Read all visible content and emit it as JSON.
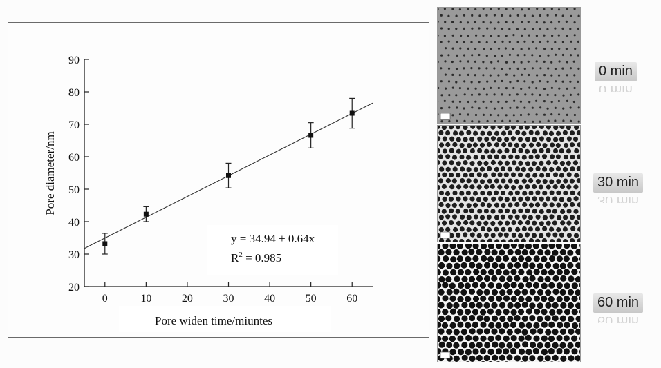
{
  "chart_data": {
    "type": "scatter",
    "xlabel": "Pore widen time/miuntes",
    "ylabel": "Pore diameter/nm",
    "xlim": [
      -5,
      65
    ],
    "ylim": [
      20,
      90
    ],
    "xticks": [
      0,
      10,
      20,
      30,
      40,
      50,
      60
    ],
    "yticks": [
      20,
      30,
      40,
      50,
      60,
      70,
      80,
      90
    ],
    "points": [
      {
        "x": 0,
        "y": 33.2,
        "err": 3.2
      },
      {
        "x": 10,
        "y": 42.3,
        "err": 2.3
      },
      {
        "x": 30,
        "y": 54.2,
        "err": 3.8
      },
      {
        "x": 50,
        "y": 66.6,
        "err": 3.9
      },
      {
        "x": 60,
        "y": 73.4,
        "err": 4.6
      }
    ],
    "fit": {
      "intercept": 34.94,
      "slope": 0.64
    },
    "annotation": {
      "equation": "y = 34.94 + 0.64x",
      "r2_prefix": "R",
      "r2_sup": "2",
      "r2_value": " = 0.985"
    },
    "grid": false,
    "legend": "none"
  },
  "sem_images": [
    {
      "label": "0 min",
      "density": "sparse"
    },
    {
      "label": "30 min",
      "density": "medium"
    },
    {
      "label": "60 min",
      "density": "dense"
    }
  ]
}
